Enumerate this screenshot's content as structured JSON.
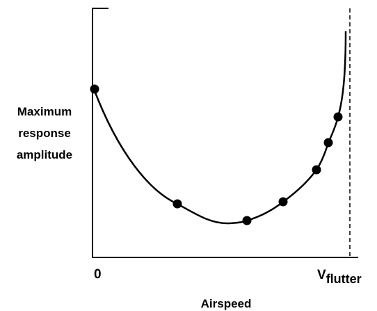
{
  "y_axis_label": [
    "Maximum",
    "response",
    "amplitude"
  ],
  "x_axis_label": "Airspeed",
  "x_axis_ticks": {
    "origin": "0",
    "end": "V",
    "end_subscript": "flutter"
  }
}
